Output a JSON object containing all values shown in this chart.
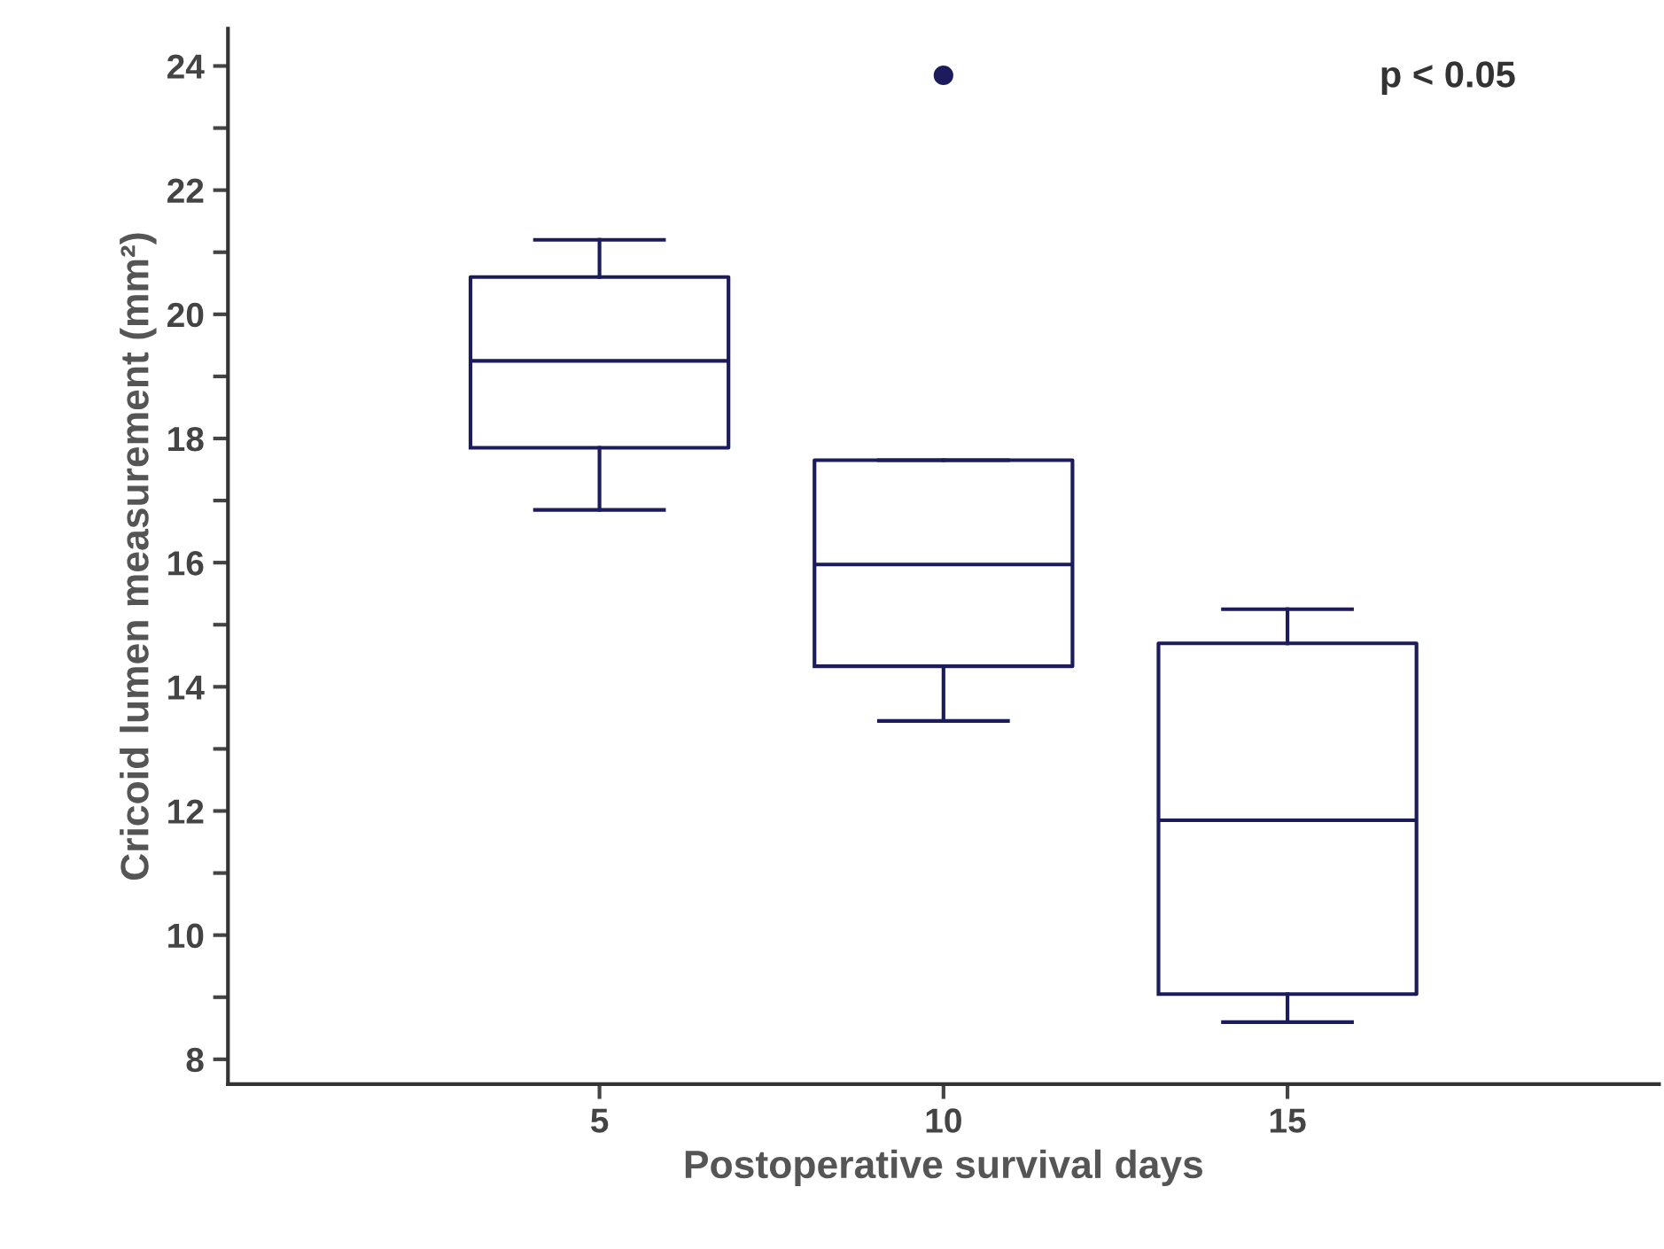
{
  "chart_data": {
    "type": "box",
    "xlabel": "Postoperative survival days",
    "ylabel": "Cricoid lumen measurement (mm²)",
    "x": [
      5,
      10,
      15
    ],
    "xlim": [
      -0.4,
      20.4
    ],
    "xticks": [
      5,
      10,
      15
    ],
    "ylim": [
      7.6,
      24.6
    ],
    "yticks": [
      8,
      {
        "value": 9,
        "label": null
      },
      10,
      {
        "value": 11,
        "label": null
      },
      12,
      {
        "value": 13,
        "label": null
      },
      14,
      {
        "value": 15,
        "label": null
      },
      16,
      {
        "value": 17,
        "label": null
      },
      18,
      {
        "value": 19,
        "label": null
      },
      20,
      {
        "value": 21,
        "label": null
      },
      22,
      {
        "value": 23,
        "label": null
      },
      24
    ],
    "color": "#1c1c5c",
    "grid": false,
    "boxes": [
      {
        "low": 16.85,
        "q1": 17.85,
        "median": 19.25,
        "q3": 20.6,
        "high": 21.2
      },
      {
        "low": 13.45,
        "q1": 14.33,
        "median": 15.97,
        "q3": 17.65,
        "high": 17.65,
        "outliers": [
          23.85
        ]
      },
      {
        "low": 8.6,
        "q1": 9.05,
        "median": 11.85,
        "q3": 14.7,
        "high": 15.25
      }
    ],
    "annotations": [
      "p < 0.05"
    ]
  }
}
